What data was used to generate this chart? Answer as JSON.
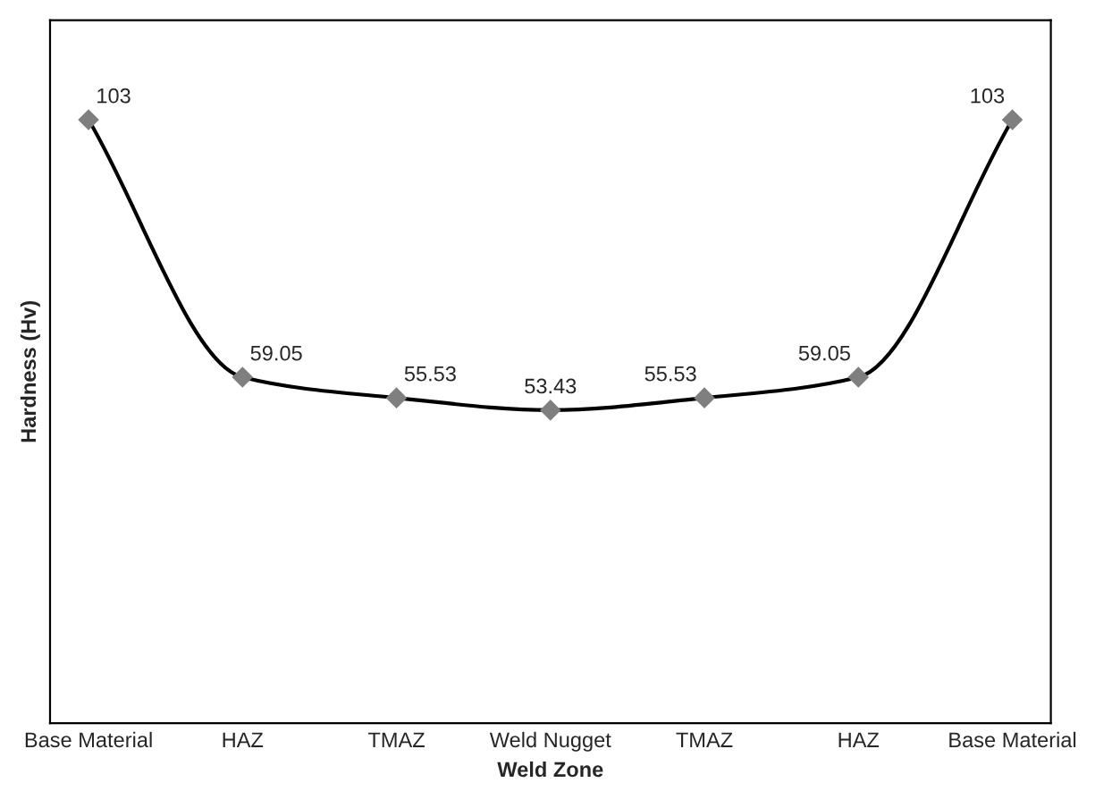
{
  "chart_data": {
    "type": "line",
    "xlabel": "Weld Zone",
    "ylabel": "Hardness (Hv)",
    "categories": [
      "Base Material",
      "HAZ",
      "TMAZ",
      "Weld Nugget",
      "TMAZ",
      "HAZ",
      "Base Material"
    ],
    "series": [
      {
        "color": "#000000",
        "values": [
          103,
          59.05,
          55.53,
          53.43,
          55.53,
          59.05,
          103
        ]
      }
    ],
    "ylim": [
      0,
      120
    ],
    "tick_labels": "x",
    "marker": "diamond",
    "line_style": "solid",
    "data_labels": true,
    "grid": false,
    "legend": false
  }
}
